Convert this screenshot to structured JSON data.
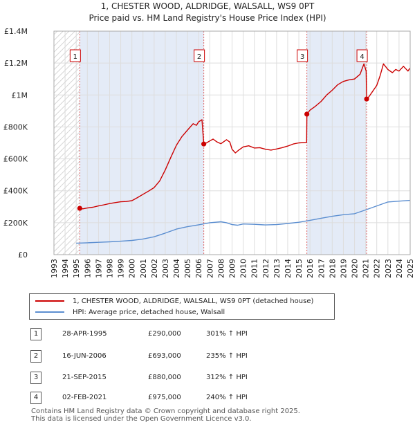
{
  "chart_data": {
    "type": "line",
    "title": "1, CHESTER WOOD, ALDRIDGE, WALSALL, WS9 0PT",
    "subtitle": "Price paid vs. HM Land Registry's House Price Index (HPI)",
    "xlim": [
      1993,
      2025
    ],
    "ylim": [
      0,
      1400000
    ],
    "x_ticks": [
      1993,
      1994,
      1995,
      1996,
      1997,
      1998,
      1999,
      2000,
      2001,
      2002,
      2003,
      2004,
      2005,
      2006,
      2007,
      2008,
      2009,
      2010,
      2011,
      2012,
      2013,
      2014,
      2015,
      2016,
      2017,
      2018,
      2019,
      2020,
      2021,
      2022,
      2023,
      2024,
      2025
    ],
    "y_ticks": [
      {
        "value": 0,
        "label": "£0"
      },
      {
        "value": 200000,
        "label": "£200K"
      },
      {
        "value": 400000,
        "label": "£400K"
      },
      {
        "value": 600000,
        "label": "£600K"
      },
      {
        "value": 800000,
        "label": "£800K"
      },
      {
        "value": 1000000,
        "label": "£1M"
      },
      {
        "value": 1200000,
        "label": "£1.2M"
      },
      {
        "value": 1400000,
        "label": "£1.4M"
      }
    ],
    "series": [
      {
        "name": "1, CHESTER WOOD, ALDRIDGE, WALSALL, WS9 0PT (detached house)",
        "color": "#cc0000",
        "points": [
          [
            1995.32,
            290000
          ],
          [
            1995.6,
            287000
          ],
          [
            1996.0,
            292000
          ],
          [
            1996.5,
            297000
          ],
          [
            1997.0,
            305000
          ],
          [
            1997.5,
            312000
          ],
          [
            1998.0,
            320000
          ],
          [
            1998.5,
            326000
          ],
          [
            1999.0,
            331000
          ],
          [
            1999.5,
            333000
          ],
          [
            2000.0,
            338000
          ],
          [
            2000.5,
            357000
          ],
          [
            2001.0,
            378000
          ],
          [
            2001.5,
            398000
          ],
          [
            2002.0,
            420000
          ],
          [
            2002.5,
            462000
          ],
          [
            2003.0,
            530000
          ],
          [
            2003.5,
            610000
          ],
          [
            2004.0,
            685000
          ],
          [
            2004.5,
            740000
          ],
          [
            2005.0,
            780000
          ],
          [
            2005.5,
            820000
          ],
          [
            2005.8,
            810000
          ],
          [
            2006.0,
            832000
          ],
          [
            2006.3,
            845000
          ],
          [
            2006.46,
            693000
          ],
          [
            2006.7,
            700000
          ],
          [
            2007.0,
            712000
          ],
          [
            2007.3,
            724000
          ],
          [
            2007.6,
            708000
          ],
          [
            2008.0,
            695000
          ],
          [
            2008.5,
            720000
          ],
          [
            2008.8,
            705000
          ],
          [
            2009.0,
            660000
          ],
          [
            2009.3,
            637000
          ],
          [
            2009.6,
            655000
          ],
          [
            2010.0,
            675000
          ],
          [
            2010.5,
            682000
          ],
          [
            2011.0,
            668000
          ],
          [
            2011.5,
            670000
          ],
          [
            2012.0,
            660000
          ],
          [
            2012.5,
            655000
          ],
          [
            2013.0,
            662000
          ],
          [
            2013.5,
            670000
          ],
          [
            2014.0,
            680000
          ],
          [
            2014.5,
            693000
          ],
          [
            2015.0,
            700000
          ],
          [
            2015.7,
            703000
          ],
          [
            2015.72,
            880000
          ],
          [
            2016.0,
            905000
          ],
          [
            2016.5,
            930000
          ],
          [
            2017.0,
            960000
          ],
          [
            2017.5,
            1000000
          ],
          [
            2018.0,
            1030000
          ],
          [
            2018.5,
            1065000
          ],
          [
            2019.0,
            1085000
          ],
          [
            2019.5,
            1095000
          ],
          [
            2020.0,
            1100000
          ],
          [
            2020.5,
            1130000
          ],
          [
            2020.85,
            1195000
          ],
          [
            2021.05,
            1150000
          ],
          [
            2021.09,
            975000
          ],
          [
            2021.3,
            990000
          ],
          [
            2021.6,
            1020000
          ],
          [
            2022.0,
            1060000
          ],
          [
            2022.3,
            1120000
          ],
          [
            2022.6,
            1195000
          ],
          [
            2023.0,
            1160000
          ],
          [
            2023.4,
            1140000
          ],
          [
            2023.7,
            1160000
          ],
          [
            2024.0,
            1150000
          ],
          [
            2024.4,
            1180000
          ],
          [
            2024.8,
            1150000
          ],
          [
            2025.0,
            1170000
          ]
        ]
      },
      {
        "name": "HPI: Average price, detached house, Walsall",
        "color": "#5b8ed0",
        "points": [
          [
            1995.0,
            72000
          ],
          [
            1996.0,
            74000
          ],
          [
            1997.0,
            77000
          ],
          [
            1998.0,
            80000
          ],
          [
            1999.0,
            84000
          ],
          [
            2000.0,
            89000
          ],
          [
            2001.0,
            98000
          ],
          [
            2002.0,
            112000
          ],
          [
            2003.0,
            135000
          ],
          [
            2004.0,
            160000
          ],
          [
            2005.0,
            175000
          ],
          [
            2006.0,
            187000
          ],
          [
            2007.0,
            200000
          ],
          [
            2008.0,
            206000
          ],
          [
            2008.5,
            200000
          ],
          [
            2009.0,
            188000
          ],
          [
            2009.5,
            184000
          ],
          [
            2010.0,
            192000
          ],
          [
            2011.0,
            190000
          ],
          [
            2012.0,
            186000
          ],
          [
            2013.0,
            188000
          ],
          [
            2014.0,
            195000
          ],
          [
            2015.0,
            203000
          ],
          [
            2016.0,
            215000
          ],
          [
            2017.0,
            228000
          ],
          [
            2018.0,
            240000
          ],
          [
            2019.0,
            250000
          ],
          [
            2020.0,
            256000
          ],
          [
            2021.0,
            280000
          ],
          [
            2022.0,
            305000
          ],
          [
            2023.0,
            330000
          ],
          [
            2024.0,
            335000
          ],
          [
            2025.0,
            340000
          ]
        ]
      }
    ],
    "sales": [
      {
        "id": "1",
        "x": 1995.32,
        "y": 290000
      },
      {
        "id": "2",
        "x": 2006.46,
        "y": 693000
      },
      {
        "id": "3",
        "x": 2015.72,
        "y": 880000
      },
      {
        "id": "4",
        "x": 2021.09,
        "y": 975000
      }
    ],
    "hatch_ranges": [
      [
        1993,
        1995.32
      ]
    ],
    "shaded_ranges": [
      [
        1995.32,
        2006.46
      ],
      [
        2015.72,
        2021.09
      ]
    ]
  },
  "legend": {
    "items": [
      {
        "label": "1, CHESTER WOOD, ALDRIDGE, WALSALL, WS9 0PT (detached house)",
        "color": "#cc0000"
      },
      {
        "label": "HPI: Average price, detached house, Walsall",
        "color": "#5b8ed0"
      }
    ]
  },
  "sales_table": [
    {
      "num": "1",
      "date": "28-APR-1995",
      "price": "£290,000",
      "hpi": "301% ↑ HPI"
    },
    {
      "num": "2",
      "date": "16-JUN-2006",
      "price": "£693,000",
      "hpi": "235% ↑ HPI"
    },
    {
      "num": "3",
      "date": "21-SEP-2015",
      "price": "£880,000",
      "hpi": "312% ↑ HPI"
    },
    {
      "num": "4",
      "date": "02-FEB-2021",
      "price": "£975,000",
      "hpi": "240% ↑ HPI"
    }
  ],
  "footer": {
    "line1": "Contains HM Land Registry data © Crown copyright and database right 2025.",
    "line2": "This data is licensed under the Open Government Licence v3.0."
  }
}
